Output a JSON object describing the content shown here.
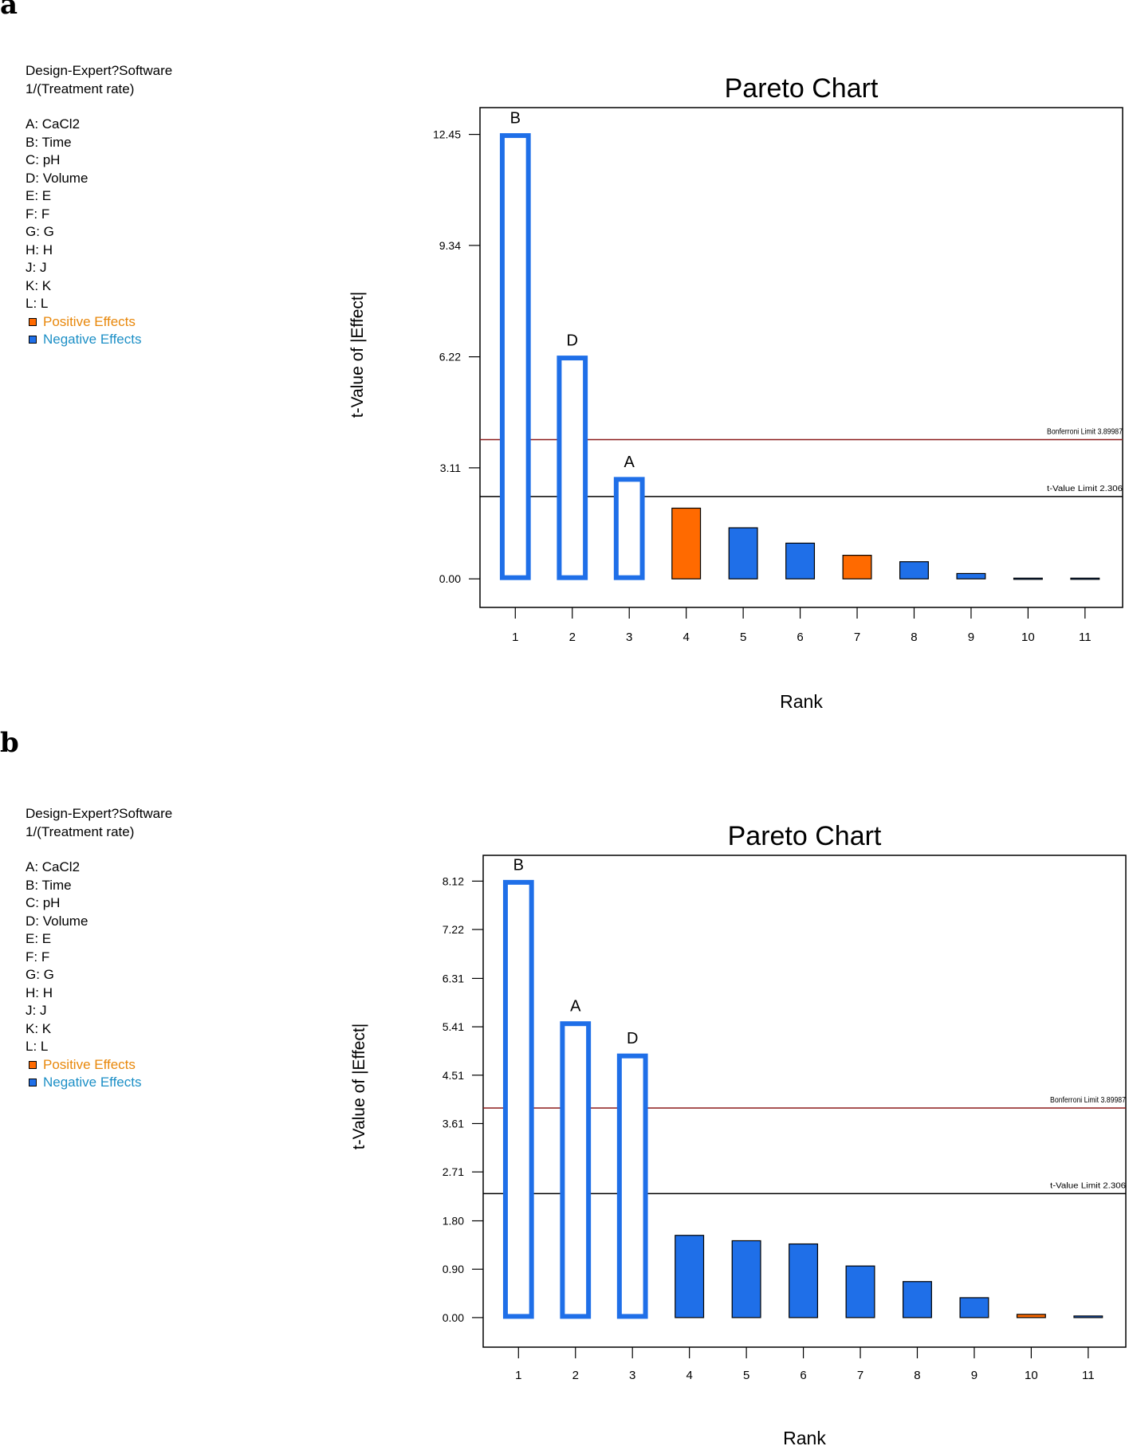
{
  "panels": [
    {
      "label": "a",
      "legend": {
        "software": "Design-Expert?Software",
        "response": "1/(Treatment rate)",
        "factors": [
          "A: CaCl2",
          "B: Time",
          "C: pH",
          "D: Volume",
          "E: E",
          "F: F",
          "G: G",
          "H: H",
          "J: J",
          "K: K",
          "L: L"
        ],
        "positive": "Positive Effects",
        "negative": "Negative Effects"
      }
    },
    {
      "label": "b",
      "legend": {
        "software": "Design-Expert?Software",
        "response": "1/(Treatment rate)",
        "factors": [
          "A: CaCl2",
          "B: Time",
          "C: pH",
          "D: Volume",
          "E: E",
          "F: F",
          "G: G",
          "H: H",
          "J: J",
          "K: K",
          "L: L"
        ],
        "positive": "Positive Effects",
        "negative": "Negative Effects"
      }
    }
  ],
  "colors": {
    "negative": "#1f6fe8",
    "positive": "#ff6a00",
    "bonferroni": "#8b1a1a",
    "tlimit": "#000000",
    "positive_text": "#e8870a",
    "negative_text": "#1c8fc6"
  },
  "chart_data": [
    {
      "type": "bar",
      "title": "Pareto Chart",
      "xlabel": "Rank",
      "ylabel": "t-Value of |Effect|",
      "categories": [
        "1",
        "2",
        "3",
        "4",
        "5",
        "6",
        "7",
        "8",
        "9",
        "10",
        "11"
      ],
      "values": [
        12.45,
        6.22,
        2.82,
        1.98,
        1.43,
        1.0,
        0.66,
        0.48,
        0.15,
        0.02,
        0.02
      ],
      "effect_sign": [
        "negative",
        "negative",
        "negative",
        "positive",
        "negative",
        "negative",
        "positive",
        "negative",
        "negative",
        "negative",
        "negative"
      ],
      "significant": [
        true,
        true,
        true,
        false,
        false,
        false,
        false,
        false,
        false,
        false,
        false
      ],
      "bar_labels": [
        "B",
        "D",
        "A",
        "",
        "",
        "",
        "",
        "",
        "",
        "",
        ""
      ],
      "yticks": [
        "0.00",
        "3.11",
        "6.22",
        "9.34",
        "12.45"
      ],
      "ylim": [
        -0.8,
        13.2
      ],
      "limits": [
        {
          "label": "Bonferroni Limit 3.89987",
          "value": 3.89987,
          "kind": "bonferroni"
        },
        {
          "label": "t-Value Limit 2.306",
          "value": 2.306,
          "kind": "tlimit"
        }
      ]
    },
    {
      "type": "bar",
      "title": "Pareto Chart",
      "xlabel": "Rank",
      "ylabel": "t-Value of |Effect|",
      "categories": [
        "1",
        "2",
        "3",
        "4",
        "5",
        "6",
        "7",
        "8",
        "9",
        "10",
        "11"
      ],
      "values": [
        8.12,
        5.49,
        4.89,
        1.53,
        1.43,
        1.37,
        0.96,
        0.67,
        0.37,
        0.06,
        0.03
      ],
      "effect_sign": [
        "negative",
        "negative",
        "negative",
        "negative",
        "negative",
        "negative",
        "negative",
        "negative",
        "negative",
        "positive",
        "negative"
      ],
      "significant": [
        true,
        true,
        true,
        false,
        false,
        false,
        false,
        false,
        false,
        false,
        false
      ],
      "bar_labels": [
        "B",
        "A",
        "D",
        "",
        "",
        "",
        "",
        "",
        "",
        "",
        ""
      ],
      "yticks": [
        "0.00",
        "0.90",
        "1.80",
        "2.71",
        "3.61",
        "4.51",
        "5.41",
        "6.31",
        "7.22",
        "8.12"
      ],
      "ylim": [
        -0.55,
        8.6
      ],
      "limits": [
        {
          "label": "Bonferroni Limit 3.89987",
          "value": 3.89987,
          "kind": "bonferroni"
        },
        {
          "label": "t-Value Limit 2.306",
          "value": 2.306,
          "kind": "tlimit"
        }
      ]
    }
  ]
}
